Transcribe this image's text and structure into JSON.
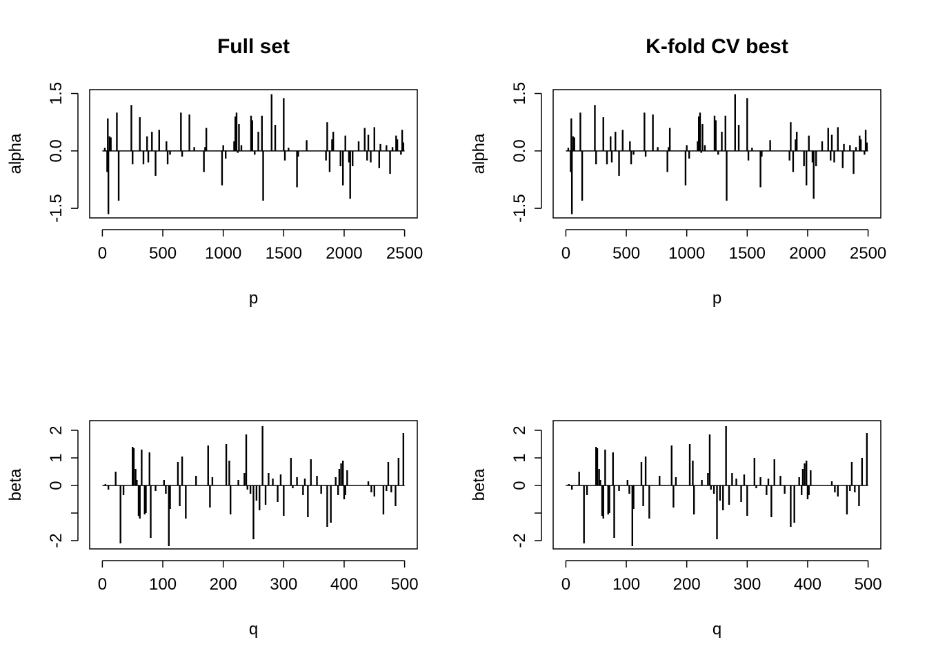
{
  "chart_data": [
    {
      "type": "bar",
      "panel": "top-left",
      "title": "Full set",
      "xlabel": "p",
      "ylabel": "alpha",
      "xlim": [
        -105,
        2605
      ],
      "ylim": [
        -1.75,
        1.6
      ],
      "xticks": [
        0,
        500,
        1000,
        1500,
        2000,
        2500
      ],
      "yticks": [
        -1.5,
        0.0,
        1.5
      ],
      "ytick_labels": [
        "-1.5",
        "0.0",
        "1.5"
      ],
      "series": [
        {
          "x": [
            20,
            40,
            45,
            50,
            60,
            70,
            120,
            135,
            240,
            250,
            310,
            340,
            370,
            380,
            410,
            440,
            470,
            530,
            540,
            560,
            650,
            660,
            720,
            760,
            840,
            850,
            860,
            990,
            1000,
            1020,
            1090,
            1100,
            1110,
            1120,
            1130,
            1150,
            1230,
            1240,
            1260,
            1290,
            1320,
            1330,
            1400,
            1430,
            1500,
            1510,
            1540,
            1610,
            1620,
            1690,
            1850,
            1860,
            1880,
            1900,
            1910,
            1970,
            1990,
            2010,
            2040,
            2050,
            2070,
            2120,
            2170,
            2190,
            2200,
            2220,
            2250,
            2290,
            2300,
            2350,
            2380,
            2400,
            2430,
            2440,
            2470,
            2480,
            2490
          ],
          "values": [
            0.08,
            -0.55,
            0.85,
            -1.65,
            0.38,
            0.35,
            1.0,
            -1.3,
            1.2,
            -0.35,
            0.88,
            -0.35,
            0.38,
            -0.3,
            0.5,
            -0.65,
            0.55,
            0.25,
            -0.35,
            -0.1,
            1.0,
            -0.15,
            0.95,
            0.1,
            -0.55,
            0.1,
            0.6,
            -0.9,
            0.15,
            -0.2,
            0.25,
            0.9,
            1.0,
            -0.05,
            0.7,
            0.15,
            0.92,
            0.8,
            -0.1,
            0.5,
            0.92,
            -1.3,
            1.48,
            0.68,
            1.38,
            -0.25,
            0.08,
            -0.95,
            -0.15,
            0.28,
            -0.25,
            0.75,
            -0.55,
            0.3,
            0.5,
            -0.4,
            -0.9,
            0.4,
            -0.3,
            -1.25,
            -0.4,
            0.25,
            0.6,
            -0.25,
            0.42,
            -0.3,
            0.62,
            -0.45,
            0.18,
            0.15,
            -0.6,
            0.1,
            0.4,
            0.3,
            -0.1,
            0.55,
            0.22
          ]
        }
      ]
    },
    {
      "type": "bar",
      "panel": "top-right",
      "title": "K-fold CV best",
      "xlabel": "p",
      "ylabel": "alpha",
      "xlim": [
        -105,
        2605
      ],
      "ylim": [
        -1.75,
        1.6
      ],
      "xticks": [
        0,
        500,
        1000,
        1500,
        2000,
        2500
      ],
      "yticks": [
        -1.5,
        0.0,
        1.5
      ],
      "ytick_labels": [
        "-1.5",
        "0.0",
        "1.5"
      ],
      "series": [
        {
          "x": [
            20,
            40,
            45,
            50,
            60,
            70,
            120,
            135,
            240,
            250,
            310,
            340,
            370,
            380,
            410,
            440,
            470,
            530,
            540,
            560,
            650,
            660,
            720,
            760,
            840,
            850,
            860,
            990,
            1000,
            1020,
            1090,
            1100,
            1110,
            1120,
            1130,
            1150,
            1230,
            1240,
            1260,
            1290,
            1320,
            1330,
            1400,
            1430,
            1500,
            1510,
            1540,
            1610,
            1620,
            1690,
            1850,
            1860,
            1880,
            1900,
            1910,
            1970,
            1990,
            2010,
            2040,
            2050,
            2070,
            2120,
            2170,
            2190,
            2200,
            2220,
            2250,
            2290,
            2300,
            2350,
            2380,
            2400,
            2430,
            2440,
            2470,
            2480,
            2490
          ],
          "values": [
            0.08,
            -0.55,
            0.85,
            -1.65,
            0.38,
            0.35,
            1.0,
            -1.3,
            1.2,
            -0.35,
            0.88,
            -0.35,
            0.38,
            -0.3,
            0.5,
            -0.65,
            0.55,
            0.25,
            -0.35,
            -0.1,
            1.0,
            -0.15,
            0.95,
            0.1,
            -0.55,
            0.1,
            0.6,
            -0.9,
            0.15,
            -0.2,
            0.25,
            0.9,
            1.0,
            -0.05,
            0.7,
            0.15,
            0.92,
            0.8,
            -0.1,
            0.5,
            0.92,
            -1.3,
            1.48,
            0.68,
            1.38,
            -0.25,
            0.08,
            -0.95,
            -0.15,
            0.28,
            -0.25,
            0.75,
            -0.55,
            0.3,
            0.5,
            -0.4,
            -0.9,
            0.4,
            -0.3,
            -1.25,
            -0.4,
            0.25,
            0.6,
            -0.25,
            0.42,
            -0.3,
            0.62,
            -0.45,
            0.18,
            0.15,
            -0.6,
            0.1,
            0.4,
            0.3,
            -0.1,
            0.55,
            0.22
          ]
        }
      ]
    },
    {
      "type": "bar",
      "panel": "bottom-left",
      "title": "",
      "xlabel": "q",
      "ylabel": "beta",
      "xlim": [
        -21,
        521
      ],
      "ylim": [
        -2.3,
        2.35
      ],
      "xticks": [
        0,
        100,
        200,
        300,
        400,
        500
      ],
      "yticks": [
        -2,
        -1,
        0,
        1,
        2
      ],
      "ytick_labels": [
        "-2",
        "",
        "0",
        "1",
        "2"
      ],
      "series": [
        {
          "x": [
            5,
            10,
            22,
            30,
            35,
            50,
            52,
            55,
            57,
            60,
            62,
            65,
            70,
            72,
            78,
            80,
            88,
            102,
            105,
            110,
            112,
            125,
            128,
            132,
            138,
            155,
            175,
            178,
            182,
            205,
            210,
            212,
            225,
            235,
            238,
            240,
            245,
            250,
            255,
            260,
            265,
            270,
            275,
            282,
            290,
            295,
            300,
            312,
            315,
            322,
            332,
            335,
            340,
            345,
            355,
            362,
            372,
            378,
            386,
            390,
            392,
            395,
            398,
            400,
            402,
            405,
            440,
            445,
            450,
            465,
            470,
            473,
            478,
            485,
            490,
            498
          ],
          "values": [
            0.05,
            -0.15,
            0.5,
            -2.1,
            -0.35,
            1.4,
            1.35,
            0.6,
            0.2,
            -1.1,
            -1.2,
            1.3,
            -1.05,
            -1.0,
            1.2,
            -1.9,
            -0.2,
            0.2,
            -0.3,
            -2.2,
            -0.85,
            0.85,
            -0.75,
            1.05,
            -1.2,
            0.35,
            1.45,
            -0.8,
            0.3,
            1.5,
            0.9,
            -1.05,
            0.2,
            0.45,
            1.85,
            -0.15,
            -0.3,
            -1.95,
            -0.55,
            -0.9,
            2.15,
            -0.7,
            0.45,
            0.25,
            -0.6,
            0.4,
            -1.1,
            1.0,
            -0.1,
            0.3,
            -0.35,
            0.25,
            -1.15,
            0.95,
            0.35,
            -0.3,
            -1.5,
            -1.35,
            0.3,
            -0.35,
            0.6,
            0.8,
            0.9,
            -0.5,
            -0.35,
            0.55,
            0.15,
            -0.25,
            -0.4,
            -1.05,
            -0.2,
            0.85,
            -0.25,
            -0.75,
            1.0,
            1.9
          ]
        }
      ]
    },
    {
      "type": "bar",
      "panel": "bottom-right",
      "title": "",
      "xlabel": "q",
      "ylabel": "beta",
      "xlim": [
        -21,
        521
      ],
      "ylim": [
        -2.3,
        2.35
      ],
      "xticks": [
        0,
        100,
        200,
        300,
        400,
        500
      ],
      "yticks": [
        -2,
        -1,
        0,
        1,
        2
      ],
      "ytick_labels": [
        "-2",
        "",
        "0",
        "1",
        "2"
      ],
      "series": [
        {
          "x": [
            5,
            10,
            22,
            30,
            35,
            50,
            52,
            55,
            57,
            60,
            62,
            65,
            70,
            72,
            78,
            80,
            88,
            102,
            105,
            110,
            112,
            125,
            128,
            132,
            138,
            155,
            175,
            178,
            182,
            205,
            210,
            212,
            225,
            235,
            238,
            240,
            245,
            250,
            255,
            260,
            265,
            270,
            275,
            282,
            290,
            295,
            300,
            312,
            315,
            322,
            332,
            335,
            340,
            345,
            355,
            362,
            372,
            378,
            386,
            390,
            392,
            395,
            398,
            400,
            402,
            405,
            440,
            445,
            450,
            465,
            470,
            473,
            478,
            485,
            490,
            498
          ],
          "values": [
            0.05,
            -0.15,
            0.5,
            -2.1,
            -0.35,
            1.4,
            1.35,
            0.6,
            0.2,
            -1.1,
            -1.2,
            1.3,
            -1.05,
            -1.0,
            1.2,
            -1.9,
            -0.2,
            0.2,
            -0.3,
            -2.2,
            -0.85,
            0.85,
            -0.75,
            1.05,
            -1.2,
            0.35,
            1.45,
            -0.8,
            0.3,
            1.5,
            0.9,
            -1.05,
            0.2,
            0.45,
            1.85,
            -0.15,
            -0.3,
            -1.95,
            -0.55,
            -0.9,
            2.15,
            -0.7,
            0.45,
            0.25,
            -0.6,
            0.4,
            -1.1,
            1.0,
            -0.1,
            0.3,
            -0.35,
            0.25,
            -1.15,
            0.95,
            0.35,
            -0.3,
            -1.5,
            -1.35,
            0.3,
            -0.35,
            0.6,
            0.8,
            0.9,
            -0.5,
            -0.35,
            0.55,
            0.15,
            -0.25,
            -0.4,
            -1.05,
            -0.2,
            0.85,
            -0.25,
            -0.75,
            1.0,
            1.9
          ]
        }
      ]
    }
  ]
}
